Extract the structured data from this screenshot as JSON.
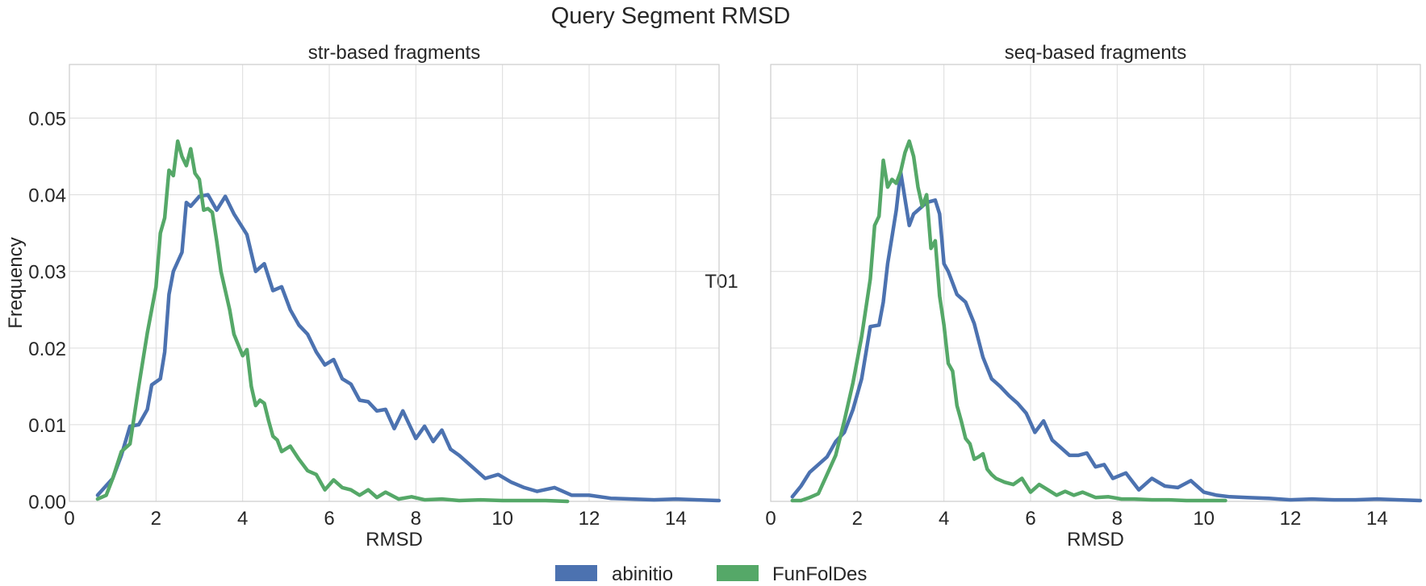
{
  "figure": {
    "title": "Query Segment RMSD",
    "row_label": "T01"
  },
  "legend": {
    "placement": "bottom-center",
    "items": [
      {
        "label": "abinitio",
        "color": "#4c72b0"
      },
      {
        "label": "FunFolDes",
        "color": "#55a868"
      }
    ]
  },
  "chart_data": [
    {
      "type": "line",
      "title": "str-based fragments",
      "xlabel": "RMSD",
      "ylabel": "Frequency",
      "xlim": [
        0,
        15
      ],
      "ylim": [
        0,
        0.057
      ],
      "xticks": [
        "0",
        "2",
        "4",
        "6",
        "8",
        "10",
        "12",
        "14"
      ],
      "yticks": [
        "0.00",
        "0.01",
        "0.02",
        "0.03",
        "0.04",
        "0.05"
      ],
      "grid": true,
      "series": [
        {
          "name": "abinitio",
          "color": "#4c72b0",
          "x": [
            0.65,
            1.0,
            1.2,
            1.4,
            1.6,
            1.8,
            1.9,
            2.1,
            2.2,
            2.3,
            2.4,
            2.6,
            2.7,
            2.8,
            3.0,
            3.2,
            3.4,
            3.6,
            3.8,
            4.1,
            4.3,
            4.5,
            4.7,
            4.9,
            5.1,
            5.3,
            5.5,
            5.7,
            5.9,
            6.1,
            6.3,
            6.5,
            6.7,
            6.9,
            7.1,
            7.3,
            7.5,
            7.7,
            8.0,
            8.2,
            8.4,
            8.6,
            8.8,
            9.0,
            9.3,
            9.6,
            9.9,
            10.2,
            10.5,
            10.8,
            11.2,
            11.6,
            12.0,
            12.5,
            13.0,
            13.5,
            14.0,
            14.5,
            15.0
          ],
          "y": [
            0.0008,
            0.003,
            0.006,
            0.0098,
            0.01,
            0.012,
            0.0152,
            0.016,
            0.0195,
            0.027,
            0.03,
            0.0325,
            0.039,
            0.0385,
            0.0398,
            0.04,
            0.038,
            0.0398,
            0.0375,
            0.0348,
            0.03,
            0.031,
            0.0275,
            0.028,
            0.025,
            0.023,
            0.0218,
            0.0195,
            0.0178,
            0.0185,
            0.016,
            0.0153,
            0.0132,
            0.013,
            0.0118,
            0.012,
            0.0095,
            0.0118,
            0.0082,
            0.0098,
            0.0078,
            0.0093,
            0.0068,
            0.006,
            0.0045,
            0.003,
            0.0035,
            0.0025,
            0.0018,
            0.0013,
            0.0018,
            0.0008,
            0.0008,
            0.0004,
            0.0003,
            0.0002,
            0.0003,
            0.0002,
            0.0001
          ]
        },
        {
          "name": "FunFolDes",
          "color": "#55a868",
          "x": [
            0.65,
            0.85,
            1.0,
            1.2,
            1.4,
            1.6,
            1.8,
            2.0,
            2.1,
            2.2,
            2.3,
            2.4,
            2.5,
            2.6,
            2.7,
            2.8,
            2.9,
            3.0,
            3.1,
            3.2,
            3.3,
            3.4,
            3.5,
            3.6,
            3.7,
            3.8,
            4.0,
            4.1,
            4.2,
            4.3,
            4.4,
            4.5,
            4.6,
            4.7,
            4.8,
            4.9,
            5.1,
            5.3,
            5.5,
            5.7,
            5.9,
            6.1,
            6.3,
            6.5,
            6.7,
            6.9,
            7.1,
            7.3,
            7.6,
            7.9,
            8.2,
            8.6,
            9.0,
            9.5,
            10.0,
            10.5,
            11.0,
            11.5
          ],
          "y": [
            0.0003,
            0.0008,
            0.003,
            0.0065,
            0.0075,
            0.015,
            0.022,
            0.028,
            0.035,
            0.037,
            0.0432,
            0.0425,
            0.047,
            0.045,
            0.0438,
            0.046,
            0.0428,
            0.042,
            0.038,
            0.0382,
            0.0377,
            0.034,
            0.03,
            0.0275,
            0.025,
            0.0218,
            0.019,
            0.0198,
            0.015,
            0.0125,
            0.0132,
            0.0128,
            0.0105,
            0.0085,
            0.008,
            0.0065,
            0.0072,
            0.0055,
            0.004,
            0.0035,
            0.0015,
            0.0028,
            0.0018,
            0.0015,
            0.0008,
            0.0015,
            0.0005,
            0.0012,
            0.0003,
            0.0006,
            0.0002,
            0.0003,
            0.0001,
            0.0002,
            0.0001,
            0.0001,
            0.0001,
            0.0
          ]
        }
      ]
    },
    {
      "type": "line",
      "title": "seq-based fragments",
      "xlabel": "RMSD",
      "ylabel": "",
      "xlim": [
        0,
        15
      ],
      "ylim": [
        0,
        0.057
      ],
      "xticks": [
        "0",
        "2",
        "4",
        "6",
        "8",
        "10",
        "12",
        "14"
      ],
      "yticks": [],
      "grid": true,
      "series": [
        {
          "name": "abinitio",
          "color": "#4c72b0",
          "x": [
            0.5,
            0.7,
            0.9,
            1.1,
            1.3,
            1.5,
            1.7,
            1.9,
            2.1,
            2.3,
            2.5,
            2.6,
            2.7,
            2.8,
            2.9,
            3.0,
            3.2,
            3.3,
            3.4,
            3.6,
            3.8,
            3.9,
            4.0,
            4.1,
            4.3,
            4.5,
            4.7,
            4.9,
            5.1,
            5.3,
            5.5,
            5.7,
            5.9,
            6.1,
            6.3,
            6.5,
            6.7,
            6.9,
            7.1,
            7.3,
            7.5,
            7.7,
            7.9,
            8.2,
            8.5,
            8.8,
            9.1,
            9.4,
            9.7,
            10.0,
            10.3,
            10.6,
            11.0,
            11.5,
            12.0,
            12.5,
            13.0,
            13.5,
            14.0,
            14.5,
            15.0
          ],
          "y": [
            0.0006,
            0.002,
            0.0038,
            0.0048,
            0.0058,
            0.0078,
            0.009,
            0.012,
            0.016,
            0.0228,
            0.023,
            0.026,
            0.031,
            0.0345,
            0.038,
            0.043,
            0.036,
            0.0375,
            0.038,
            0.039,
            0.0393,
            0.0375,
            0.031,
            0.03,
            0.027,
            0.026,
            0.0232,
            0.0188,
            0.016,
            0.015,
            0.0138,
            0.0128,
            0.0115,
            0.009,
            0.0105,
            0.008,
            0.007,
            0.006,
            0.006,
            0.0063,
            0.0045,
            0.0048,
            0.003,
            0.0037,
            0.0015,
            0.003,
            0.002,
            0.0018,
            0.0027,
            0.0012,
            0.0008,
            0.0006,
            0.0005,
            0.0004,
            0.0002,
            0.0003,
            0.0002,
            0.0002,
            0.0003,
            0.0002,
            0.0001
          ]
        },
        {
          "name": "FunFolDes",
          "color": "#55a868",
          "x": [
            0.5,
            0.7,
            0.9,
            1.1,
            1.3,
            1.5,
            1.7,
            1.9,
            2.1,
            2.3,
            2.4,
            2.5,
            2.6,
            2.7,
            2.8,
            2.9,
            3.0,
            3.1,
            3.2,
            3.3,
            3.4,
            3.5,
            3.6,
            3.7,
            3.8,
            3.9,
            4.0,
            4.1,
            4.2,
            4.3,
            4.4,
            4.5,
            4.6,
            4.7,
            4.8,
            4.9,
            5.0,
            5.1,
            5.2,
            5.4,
            5.6,
            5.8,
            6.0,
            6.2,
            6.4,
            6.6,
            6.8,
            7.0,
            7.2,
            7.5,
            7.8,
            8.1,
            8.4,
            8.8,
            9.2,
            9.6,
            10.0,
            10.5
          ],
          "y": [
            0.0001,
            0.0001,
            0.0005,
            0.001,
            0.0035,
            0.006,
            0.0105,
            0.0155,
            0.0215,
            0.029,
            0.036,
            0.0372,
            0.0445,
            0.041,
            0.042,
            0.0415,
            0.043,
            0.0455,
            0.047,
            0.045,
            0.041,
            0.0385,
            0.04,
            0.033,
            0.034,
            0.0268,
            0.023,
            0.018,
            0.017,
            0.0125,
            0.0105,
            0.0082,
            0.0075,
            0.0055,
            0.0058,
            0.0062,
            0.0042,
            0.0035,
            0.003,
            0.0025,
            0.0022,
            0.003,
            0.0012,
            0.0022,
            0.0015,
            0.0008,
            0.0013,
            0.0008,
            0.0012,
            0.0005,
            0.0006,
            0.0003,
            0.0003,
            0.0002,
            0.0002,
            0.0001,
            0.0001,
            0.0001
          ]
        }
      ]
    }
  ]
}
